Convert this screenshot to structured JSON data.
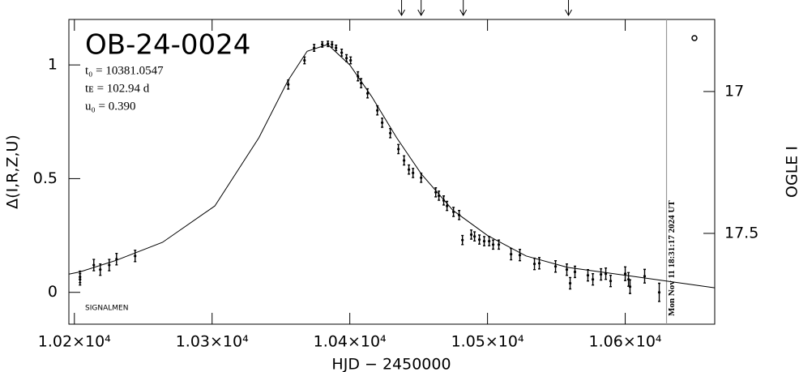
{
  "chart_data": {
    "type": "scatter",
    "title": "OB-24-0024",
    "annotations": [
      "t₀ = 10381.0547",
      "tᴇ = 102.94 d",
      "u₀ = 0.390"
    ],
    "footnote": "SIGNALMEN",
    "xlabel": "HJD − 2450000",
    "ylabel": "Δ(I,R,Z,U)",
    "y2label": "OGLE I",
    "xlim": [
      10196,
      10665
    ],
    "ylim": [
      -0.14,
      1.2
    ],
    "y2lim": [
      17.82,
      16.746
    ],
    "xticks": [
      {
        "value": 10200,
        "label": "1.02×10⁴"
      },
      {
        "value": 10300,
        "label": "1.03×10⁴"
      },
      {
        "value": 10400,
        "label": "1.04×10⁴"
      },
      {
        "value": 10500,
        "label": "1.05×10⁴"
      },
      {
        "value": 10600,
        "label": "1.06×10⁴"
      }
    ],
    "yticks": [
      0,
      0.5,
      1
    ],
    "y2ticks": [
      17,
      17.5
    ],
    "now_line": {
      "x": 10630,
      "label": "Mon Nov 11 18:31:17 2024 UT",
      "color": "#999999"
    },
    "arrows_x": [
      10437.6,
      10451.8,
      10482.4,
      10558.8
    ],
    "series": [
      {
        "kind": "points",
        "color": "#000000",
        "x": [
          10204.1,
          10204.1,
          10214.1,
          10218.8,
          10225.3,
          10230.6,
          10244.1,
          10355.3,
          10367.1,
          10374.1,
          10380,
          10384.1,
          10387.1,
          10390,
          10394.1,
          10397.6,
          10400.6,
          10405.9,
          10408.2,
          10412.9,
          10420,
          10423.5,
          10429.4,
          10435.3,
          10439.4,
          10442.9,
          10445.9,
          10451.8,
          10462.4,
          10464.7,
          10468.2,
          10470.6,
          10475.3,
          10479.4,
          10481.8,
          10488.2,
          10490.6,
          10494.1,
          10497.6,
          10501.2,
          10504.1,
          10508.2,
          10517.1,
          10523.5,
          10534.1,
          10537.6,
          10549.4,
          10557.6,
          10560,
          10563.5,
          10572.9,
          10576.5,
          10582.4,
          10585.9,
          10589.4,
          10600,
          10602.4,
          10603.5,
          10614.1,
          10624.7
        ],
        "values": [
          0.057,
          0.068,
          0.12,
          0.1,
          0.12,
          0.146,
          0.16,
          0.914,
          1.02,
          1.075,
          1.09,
          1.093,
          1.09,
          1.075,
          1.054,
          1.03,
          1.02,
          0.95,
          0.92,
          0.875,
          0.8,
          0.746,
          0.7,
          0.63,
          0.58,
          0.54,
          0.525,
          0.504,
          0.44,
          0.425,
          0.404,
          0.38,
          0.354,
          0.34,
          0.23,
          0.254,
          0.246,
          0.232,
          0.225,
          0.225,
          0.21,
          0.21,
          0.168,
          0.164,
          0.125,
          0.128,
          0.114,
          0.1,
          0.04,
          0.09,
          0.075,
          0.057,
          0.079,
          0.082,
          0.05,
          0.082,
          0.057,
          0.025,
          0.071,
          0.0
        ],
        "errors": [
          0.025,
          0.025,
          0.025,
          0.025,
          0.025,
          0.025,
          0.025,
          0.02,
          0.015,
          0.015,
          0.012,
          0.012,
          0.012,
          0.012,
          0.015,
          0.015,
          0.015,
          0.02,
          0.02,
          0.02,
          0.02,
          0.02,
          0.02,
          0.02,
          0.02,
          0.02,
          0.02,
          0.02,
          0.02,
          0.02,
          0.02,
          0.02,
          0.02,
          0.02,
          0.02,
          0.02,
          0.02,
          0.02,
          0.02,
          0.02,
          0.02,
          0.02,
          0.025,
          0.025,
          0.025,
          0.025,
          0.025,
          0.025,
          0.025,
          0.025,
          0.025,
          0.025,
          0.025,
          0.025,
          0.025,
          0.03,
          0.03,
          0.03,
          0.03,
          0.04
        ]
      },
      {
        "kind": "model",
        "color": "#000000",
        "x": [
          10196,
          10204,
          10230,
          10264,
          10302,
          10334,
          10355,
          10369,
          10384,
          10400,
          10416,
          10434,
          10452,
          10475,
          10500,
          10528,
          10558,
          10600,
          10665
        ],
        "values": [
          0.08,
          0.09,
          0.14,
          0.22,
          0.38,
          0.68,
          0.93,
          1.06,
          1.09,
          1.0,
          0.86,
          0.68,
          0.52,
          0.36,
          0.25,
          0.16,
          0.11,
          0.075,
          0.02
        ]
      }
    ]
  }
}
